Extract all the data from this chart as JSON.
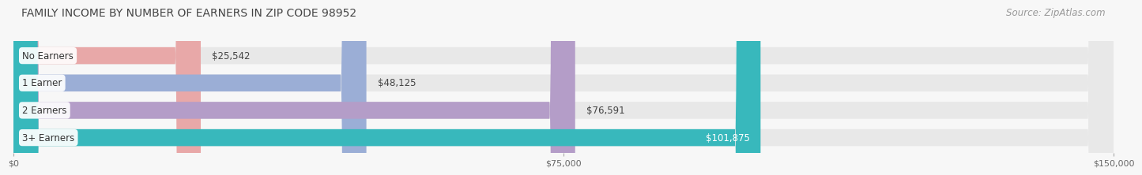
{
  "title": "FAMILY INCOME BY NUMBER OF EARNERS IN ZIP CODE 98952",
  "source": "Source: ZipAtlas.com",
  "categories": [
    "No Earners",
    "1 Earner",
    "2 Earners",
    "3+ Earners"
  ],
  "values": [
    25542,
    48125,
    76591,
    101875
  ],
  "bar_colors": [
    "#e8a8a8",
    "#9baed6",
    "#b49dc8",
    "#38b8bc"
  ],
  "value_inside": [
    false,
    false,
    false,
    true
  ],
  "xlim": [
    0,
    150000
  ],
  "xtick_values": [
    0,
    75000,
    150000
  ],
  "xtick_labels": [
    "$0",
    "$75,000",
    "$150,000"
  ],
  "background_color": "#f7f7f7",
  "bar_bg_color": "#e8e8e8",
  "title_fontsize": 10,
  "source_fontsize": 8.5,
  "bar_height": 0.62,
  "label_fontsize": 8.5,
  "value_fontsize": 8.5
}
